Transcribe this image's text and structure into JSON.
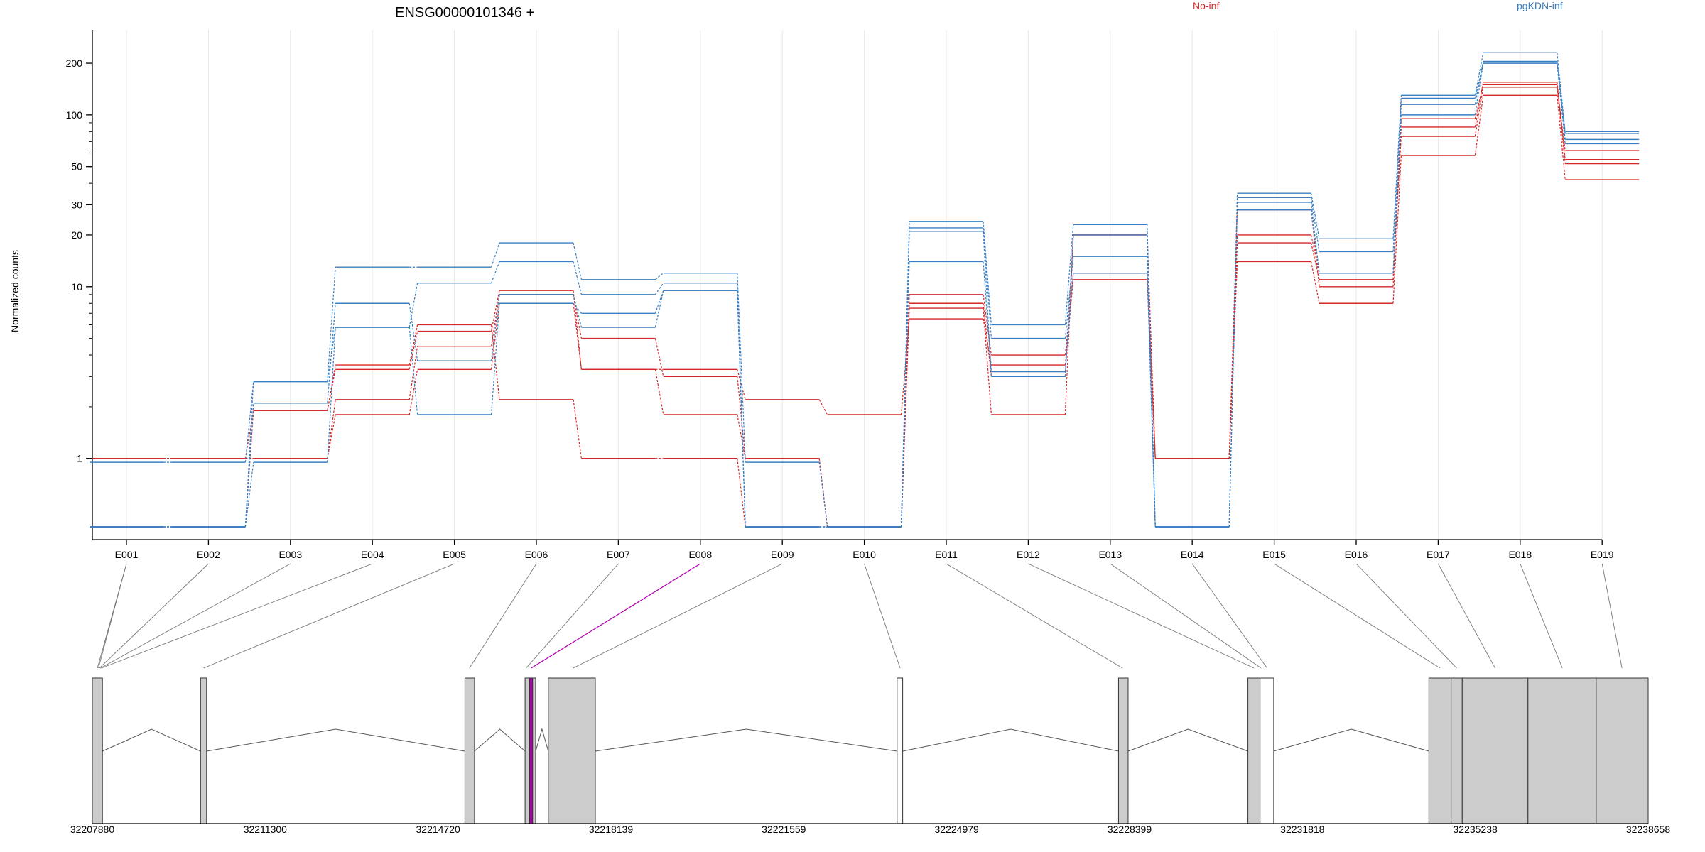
{
  "chart_data": {
    "type": "line",
    "title": "ENSG00000101346 +",
    "ylabel": "Normalized counts",
    "xlabel": "",
    "yscale": "log",
    "grid": "vertical",
    "categories": [
      "E001",
      "E002",
      "E003",
      "E004",
      "E005",
      "E006",
      "E007",
      "E008",
      "E009",
      "E010",
      "E011",
      "E012",
      "E013",
      "E014",
      "E015",
      "E016",
      "E017",
      "E018",
      "E019"
    ],
    "y_ticks": [
      1,
      10,
      20,
      30,
      50,
      100,
      200
    ],
    "ylim": [
      0.4,
      290
    ],
    "legend": [
      {
        "name": "No-inf",
        "color": "#d62728"
      },
      {
        "name": "pgKDN-inf",
        "color": "#3a7fc1"
      }
    ],
    "series": [
      {
        "group": "No-inf",
        "values": [
          1,
          1,
          1.9,
          3.3,
          5.5,
          9.5,
          3.3,
          1.8,
          1,
          0.4,
          7.5,
          1.8,
          20,
          1,
          18,
          11,
          85,
          155,
          55
        ]
      },
      {
        "group": "No-inf",
        "values": [
          1,
          1,
          1,
          2.2,
          4.5,
          9,
          5,
          3,
          1,
          0.4,
          8,
          3,
          20,
          1,
          28,
          10,
          95,
          150,
          52
        ]
      },
      {
        "group": "No-inf",
        "values": [
          1,
          1,
          1,
          1.8,
          3.3,
          8,
          3.3,
          3.3,
          2.2,
          1.8,
          6.5,
          3.5,
          11,
          1,
          14,
          8,
          58,
          130,
          42
        ]
      },
      {
        "group": "No-inf",
        "values": [
          0.4,
          0.4,
          1.9,
          3.5,
          6,
          2.2,
          1,
          1,
          0.4,
          0.4,
          9,
          4,
          12,
          1,
          20,
          12,
          75,
          145,
          62
        ]
      },
      {
        "group": "pgKDN-inf",
        "values": [
          0.95,
          0.95,
          2.8,
          13,
          13,
          18,
          11,
          12,
          0.95,
          0.4,
          24,
          6,
          23,
          0.4,
          35,
          19,
          130,
          230,
          80
        ]
      },
      {
        "group": "pgKDN-inf",
        "values": [
          0.4,
          0.4,
          2.8,
          5.8,
          10.5,
          14,
          9,
          10.5,
          0.4,
          0.4,
          22,
          5,
          15,
          0.4,
          33,
          16,
          115,
          205,
          78
        ]
      },
      {
        "group": "pgKDN-inf",
        "values": [
          0.4,
          0.4,
          2.1,
          8,
          3.7,
          9,
          5.8,
          9.5,
          0.4,
          0.4,
          14,
          3.2,
          12,
          0.4,
          31,
          12,
          100,
          200,
          72
        ]
      },
      {
        "group": "pgKDN-inf",
        "values": [
          0.4,
          0.4,
          0.95,
          5.8,
          1.8,
          8,
          7,
          9.5,
          0.4,
          0.4,
          21,
          3,
          20,
          0.4,
          28,
          12,
          125,
          200,
          68
        ]
      }
    ],
    "gene_model": {
      "axis_ticks": [
        "32207880",
        "32211300",
        "32214720",
        "32218139",
        "32221559",
        "32224979",
        "32228399",
        "32231818",
        "32235238",
        "32238658"
      ],
      "axis_range": [
        32207880,
        32238658
      ],
      "exon_ranges": [
        [
          32207880,
          32208080
        ],
        [
          32210020,
          32210140
        ],
        [
          32215250,
          32215440
        ],
        [
          32216440,
          32216530
        ],
        [
          32216530,
          32216590
        ],
        [
          32216590,
          32216650
        ],
        [
          32216900,
          32217830
        ],
        [
          32223800,
          32223910
        ],
        [
          32228180,
          32228370
        ],
        [
          32230740,
          32230980
        ],
        [
          32230980,
          32231250
        ],
        [
          32234320,
          32234760
        ],
        [
          32234760,
          32234980
        ],
        [
          32234980,
          32236280
        ],
        [
          32236280,
          32237630
        ],
        [
          32237630,
          32238658
        ]
      ],
      "exon_fills": [
        "#cccccc",
        "#cccccc",
        "#cccccc",
        "#cccccc",
        "#b000b0",
        "#cccccc",
        "#cccccc",
        "#ffffff",
        "#cccccc",
        "#cccccc",
        "#ffffff",
        "#cccccc",
        "#cccccc",
        "#cccccc",
        "#cccccc",
        "#cccccc"
      ],
      "bin_positions": [
        32207980,
        32208000,
        32208020,
        32208040,
        32208060,
        32210080,
        32215340,
        32216460,
        32216560,
        32217390,
        32223860,
        32228260,
        32230860,
        32231000,
        32231120,
        32234540,
        32234870,
        32235630,
        32236960,
        32238140
      ],
      "bin_link_label_index": [
        0,
        0,
        1,
        2,
        3,
        4,
        5,
        6,
        7,
        8,
        9,
        10,
        11,
        12,
        13,
        14,
        15,
        16,
        17,
        18
      ],
      "highlight_bin": 7,
      "highlight_color": "#b000b0"
    }
  }
}
